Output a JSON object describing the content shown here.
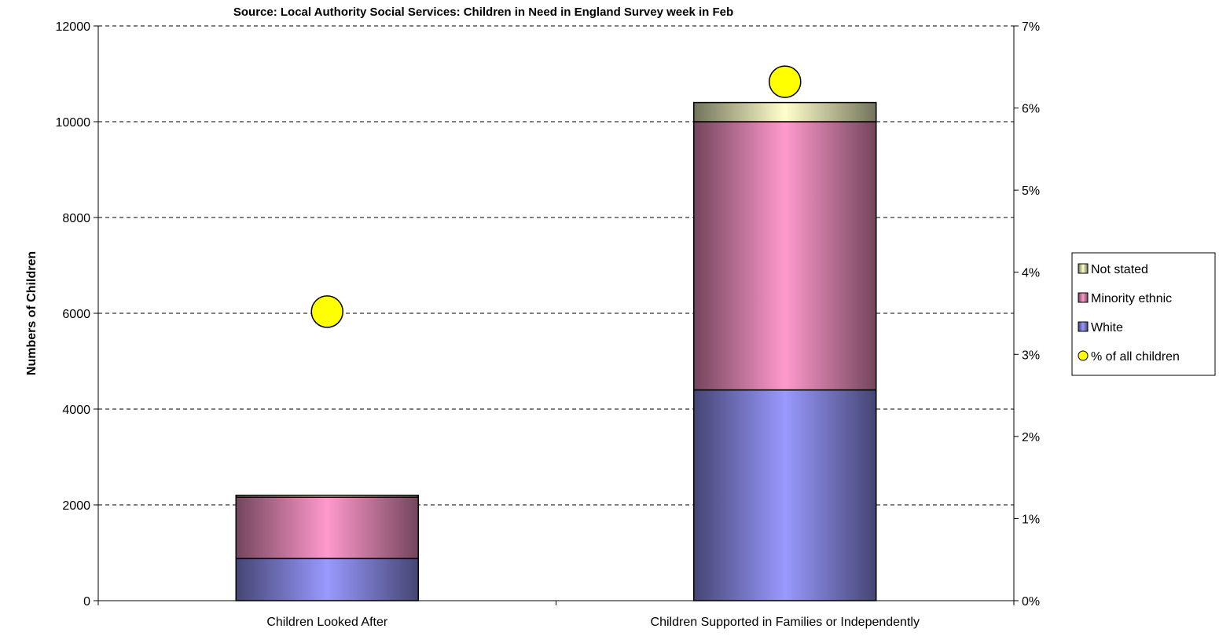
{
  "chart_data": {
    "type": "bar",
    "stacked": true,
    "title": "Source: Local Authority Social Services: Children in Need in England Survey week in Feb",
    "xlabel": "",
    "ylabel": "Numbers of Children",
    "y2label": "",
    "categories": [
      "Children Looked After",
      "Children Supported in Families or Independently"
    ],
    "series": [
      {
        "name": "White",
        "values": [
          880,
          4400
        ],
        "color": "#9999ff"
      },
      {
        "name": "Minority ethnic",
        "values": [
          1280,
          5600
        ],
        "color": "#ff99cc"
      },
      {
        "name": "Not stated",
        "values": [
          40,
          400
        ],
        "color": "#ffffcc"
      }
    ],
    "overlay": {
      "type": "scatter",
      "name": "% of all children",
      "axis": "y2",
      "values": [
        0.0352,
        0.0632
      ],
      "color": "#ffff00"
    },
    "ylim": [
      0,
      12000
    ],
    "yticks": [
      0,
      2000,
      4000,
      6000,
      8000,
      10000,
      12000
    ],
    "ytick_labels": [
      "0",
      "2000",
      "4000",
      "6000",
      "8000",
      "10000",
      "12000"
    ],
    "y2lim": [
      0,
      0.07
    ],
    "y2ticks": [
      0,
      0.01,
      0.02,
      0.03,
      0.04,
      0.05,
      0.06,
      0.07
    ],
    "y2tick_labels": [
      "0%",
      "1%",
      "2%",
      "3%",
      "4%",
      "5%",
      "6%",
      "7%"
    ],
    "grid": true,
    "legend": {
      "placement": "right",
      "order": [
        "Not stated",
        "Minority ethnic",
        "White",
        "% of all children"
      ]
    }
  }
}
